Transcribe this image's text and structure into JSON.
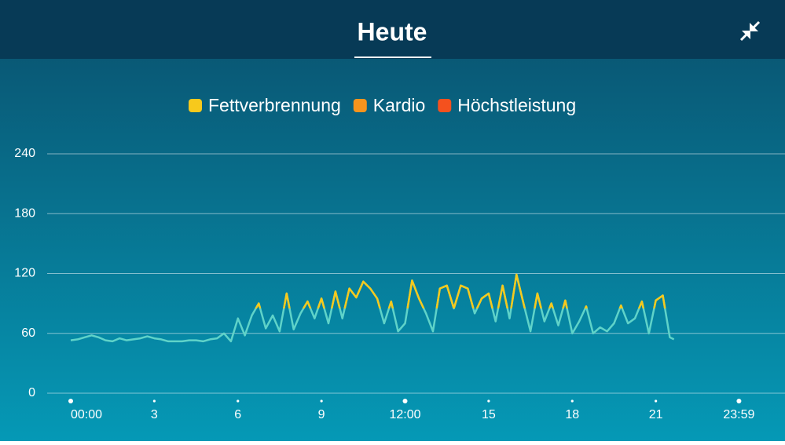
{
  "header": {
    "title": "Heute"
  },
  "chart_data": {
    "type": "line",
    "x": [
      0,
      0.25,
      0.5,
      0.75,
      1,
      1.25,
      1.5,
      1.75,
      2,
      2.25,
      2.5,
      2.75,
      3,
      3.25,
      3.5,
      3.75,
      4,
      4.25,
      4.5,
      4.75,
      5,
      5.25,
      5.5,
      5.75,
      6,
      6.25,
      6.5,
      6.75,
      7,
      7.25,
      7.5,
      7.75,
      8,
      8.25,
      8.5,
      8.75,
      9,
      9.25,
      9.5,
      9.75,
      10,
      10.25,
      10.5,
      10.75,
      11,
      11.25,
      11.5,
      11.75,
      12,
      12.25,
      12.5,
      12.75,
      13,
      13.25,
      13.5,
      13.75,
      14,
      14.25,
      14.5,
      14.75,
      15,
      15.25,
      15.5,
      15.75,
      16,
      16.25,
      16.5,
      16.75,
      17,
      17.25,
      17.5,
      17.75,
      18,
      18.25,
      18.5,
      18.75,
      19,
      19.25,
      19.5,
      19.75,
      20,
      20.25,
      20.5,
      20.75,
      21,
      21.25,
      21.5,
      21.65
    ],
    "series": [
      {
        "color": "#5fd3c9",
        "values": [
          53,
          54,
          56,
          58,
          56,
          53,
          52,
          55,
          53,
          54,
          55,
          57,
          55,
          54,
          52,
          52,
          52,
          53,
          53,
          52,
          54,
          55,
          60,
          52,
          75,
          58,
          78,
          90,
          65,
          78,
          62,
          100,
          64,
          80,
          92,
          75,
          95,
          70,
          102,
          75,
          105,
          96,
          112,
          105,
          95,
          70,
          92,
          62,
          70,
          113,
          95,
          80,
          62,
          105,
          108,
          85,
          108,
          105,
          80,
          95,
          100,
          72,
          108,
          75,
          119,
          90,
          62,
          100,
          72,
          90,
          68,
          93,
          60,
          72,
          87,
          60,
          66,
          62,
          70,
          88,
          70,
          75,
          92,
          60,
          93,
          98,
          56,
          54
        ]
      }
    ],
    "zones": [
      {
        "name": "Fettverbrennung",
        "color": "#f7c91c",
        "from": 85
      },
      {
        "name": "Kardio",
        "color": "#f7941d"
      },
      {
        "name": "Höchstleistung",
        "color": "#f4511e"
      }
    ],
    "xlim": [
      0,
      24
    ],
    "xticks": [
      {
        "value": 0,
        "label": "00:00"
      },
      3,
      6,
      9,
      {
        "value": 12,
        "label": "12:00"
      },
      15,
      18,
      21,
      {
        "value": 23.983,
        "label": "23:59"
      }
    ],
    "ylim": [
      0,
      240
    ],
    "yticks": [
      0,
      60,
      120,
      180,
      240
    ],
    "grid": true
  }
}
